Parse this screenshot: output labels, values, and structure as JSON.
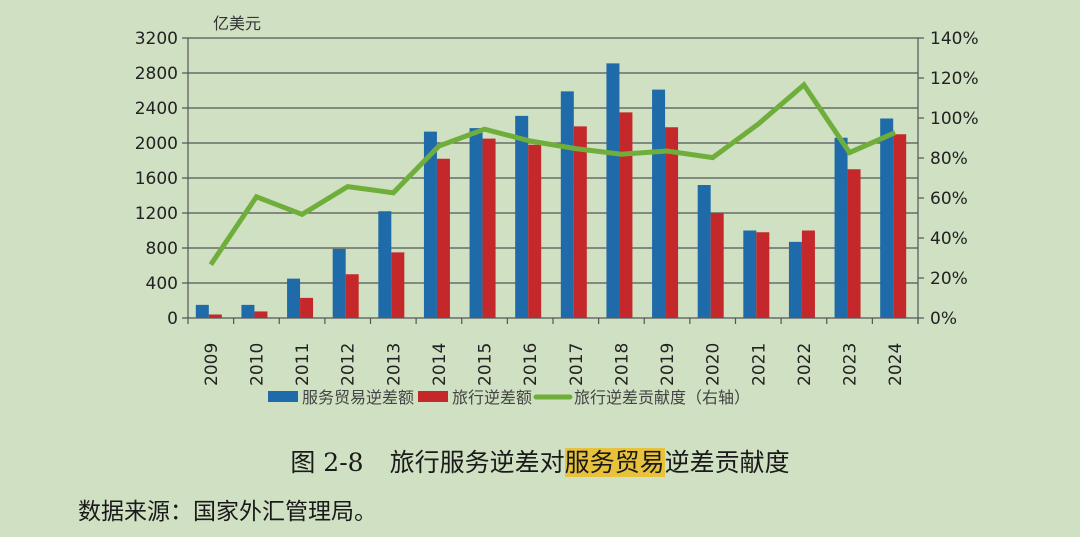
{
  "chart_data": {
    "type": "bar+line",
    "unit_label": "亿美元",
    "categories": [
      "2009",
      "2010",
      "2011",
      "2012",
      "2013",
      "2014",
      "2015",
      "2016",
      "2017",
      "2018",
      "2019",
      "2020",
      "2021",
      "2022",
      "2023",
      "2024"
    ],
    "series": [
      {
        "name": "服务贸易逆差额",
        "type": "bar",
        "axis": "left",
        "color": "#1f6aa8",
        "values": [
          150,
          150,
          450,
          790,
          1220,
          2130,
          2170,
          2310,
          2590,
          2910,
          2610,
          1520,
          1000,
          870,
          2060,
          2280
        ]
      },
      {
        "name": "旅行逆差额",
        "type": "bar",
        "axis": "left",
        "color": "#c4282a",
        "values": [
          40,
          75,
          230,
          500,
          750,
          1820,
          2050,
          1980,
          2190,
          2350,
          2180,
          1200,
          980,
          1000,
          1700,
          2100
        ]
      },
      {
        "name": "旅行逆差贡献度（右轴）",
        "type": "line",
        "axis": "right",
        "color": "#6fae3a",
        "values": [
          26.7,
          60.6,
          51.8,
          65.7,
          62.6,
          86,
          94.4,
          88.5,
          84.7,
          81.9,
          83.5,
          80.2,
          97,
          116.6,
          82.7,
          92.7
        ]
      }
    ],
    "left_axis": {
      "ylim": [
        0,
        3200
      ],
      "ticks": [
        "0",
        "400",
        "800",
        "1200",
        "1600",
        "2000",
        "2400",
        "2800",
        "3200"
      ]
    },
    "right_axis": {
      "ylim": [
        0,
        140
      ],
      "ticks": [
        "0%",
        "20%",
        "40%",
        "60%",
        "80%",
        "100%",
        "120%",
        "140%"
      ]
    },
    "grid": true,
    "legend_placement": "bottom"
  },
  "caption": {
    "figure_no": "图 2-8",
    "part1": "旅行服务逆差对",
    "highlight": "服务贸易",
    "part2": "逆差贡献度",
    "highlight_color": "#e8c23a"
  },
  "source": "数据来源：国家外汇管理局。"
}
